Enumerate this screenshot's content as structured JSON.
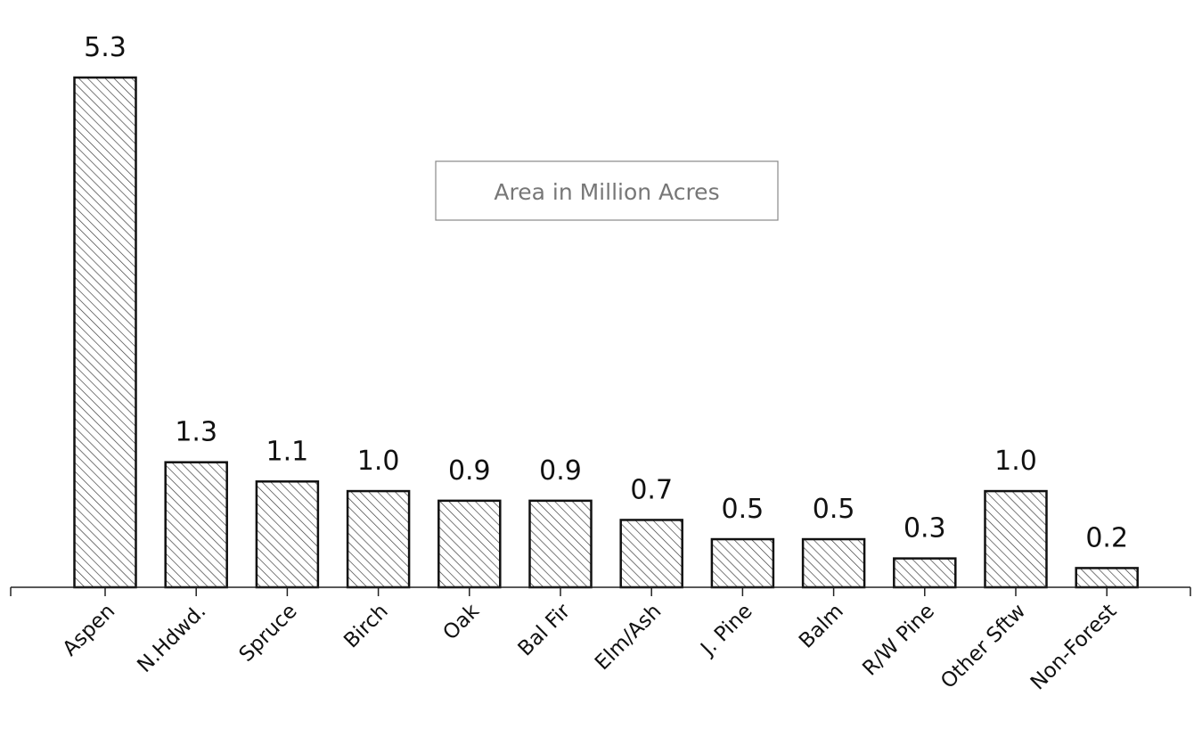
{
  "chart_data": {
    "type": "bar",
    "categories": [
      "Aspen",
      "N.Hdwd.",
      "Spruce",
      "Birch",
      "Oak",
      "Bal Fir",
      "Elm/Ash",
      "J. Pine",
      "Balm",
      "R/W Pine",
      "Other Sftw",
      "Non-Forest"
    ],
    "values": [
      5.3,
      1.3,
      1.1,
      1.0,
      0.9,
      0.9,
      0.7,
      0.5,
      0.5,
      0.3,
      1.0,
      0.2
    ],
    "value_labels": [
      "5.3",
      "1.3",
      "1.1",
      "1.0",
      "0.9",
      "0.9",
      "0.7",
      "0.5",
      "0.5",
      "0.3",
      "1.0",
      "0.2"
    ],
    "legend": "Area in Million Acres",
    "legend_position": "upper-center",
    "ylim": [
      0,
      5.3
    ],
    "grid": false,
    "bar_fill": "diagonal-hatch",
    "colors": {
      "bar_stroke": "#111111",
      "hatch": "#333333",
      "axis": "#222222",
      "legend_text": "#777777"
    }
  }
}
